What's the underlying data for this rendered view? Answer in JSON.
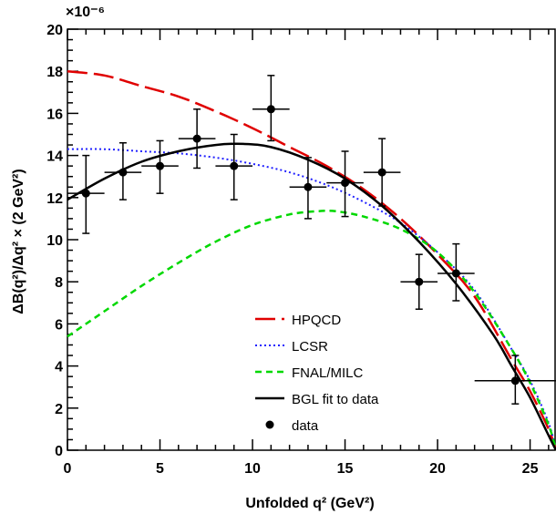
{
  "chart_data": {
    "type": "scatter",
    "title": "",
    "xlabel": "Unfolded q² (GeV²)",
    "ylabel": "ΔB(q²)/Δq² × (2 GeV²)",
    "y_exponent_label": "×10⁻⁶",
    "xlim": [
      0,
      26.4
    ],
    "ylim": [
      0,
      20
    ],
    "x_ticks": [
      "0",
      "5",
      "10",
      "15",
      "20",
      "25"
    ],
    "y_ticks": [
      "0",
      "2",
      "4",
      "6",
      "8",
      "10",
      "12",
      "14",
      "16",
      "18",
      "20"
    ],
    "grid": false,
    "legend_position": "bottom-center",
    "data_series": {
      "name": "data",
      "color": "#000000",
      "points": [
        {
          "x": 1,
          "y": 12.2,
          "xerr_lo": 1,
          "xerr_hi": 1,
          "yerr_lo": 1.9,
          "yerr_hi": 1.8
        },
        {
          "x": 3,
          "y": 13.2,
          "xerr_lo": 1,
          "xerr_hi": 1,
          "yerr_lo": 1.3,
          "yerr_hi": 1.4
        },
        {
          "x": 5,
          "y": 13.5,
          "xerr_lo": 1,
          "xerr_hi": 1,
          "yerr_lo": 1.3,
          "yerr_hi": 1.2
        },
        {
          "x": 7,
          "y": 14.8,
          "xerr_lo": 1,
          "xerr_hi": 1,
          "yerr_lo": 1.4,
          "yerr_hi": 1.4
        },
        {
          "x": 9,
          "y": 13.5,
          "xerr_lo": 1,
          "xerr_hi": 1,
          "yerr_lo": 1.6,
          "yerr_hi": 1.5
        },
        {
          "x": 11,
          "y": 16.2,
          "xerr_lo": 1,
          "xerr_hi": 1,
          "yerr_lo": 1.5,
          "yerr_hi": 1.6
        },
        {
          "x": 13,
          "y": 12.5,
          "xerr_lo": 1,
          "xerr_hi": 1,
          "yerr_lo": 1.5,
          "yerr_hi": 1.4
        },
        {
          "x": 15,
          "y": 12.7,
          "xerr_lo": 1,
          "xerr_hi": 1,
          "yerr_lo": 1.6,
          "yerr_hi": 1.5
        },
        {
          "x": 17,
          "y": 13.2,
          "xerr_lo": 1,
          "xerr_hi": 1,
          "yerr_lo": 1.6,
          "yerr_hi": 1.6
        },
        {
          "x": 19,
          "y": 8.0,
          "xerr_lo": 1,
          "xerr_hi": 1,
          "yerr_lo": 1.3,
          "yerr_hi": 1.3
        },
        {
          "x": 21,
          "y": 8.4,
          "xerr_lo": 1,
          "xerr_hi": 1,
          "yerr_lo": 1.3,
          "yerr_hi": 1.4
        },
        {
          "x": 24.2,
          "y": 3.3,
          "xerr_lo": 2.2,
          "xerr_hi": 2.2,
          "yerr_lo": 1.1,
          "yerr_hi": 1.2
        }
      ]
    },
    "curves": [
      {
        "name": "HPQCD",
        "color": "#e00000",
        "dash": "22 7",
        "width": 2.5,
        "x": [
          0,
          2,
          4,
          6,
          8,
          10,
          12,
          14,
          16,
          18,
          20,
          22,
          24,
          25,
          26,
          26.4
        ],
        "y": [
          18.0,
          17.8,
          17.3,
          16.8,
          16.1,
          15.3,
          14.4,
          13.5,
          12.4,
          11.0,
          9.3,
          7.3,
          4.3,
          2.8,
          1.0,
          0.0
        ]
      },
      {
        "name": "LCSR",
        "color": "#2020ff",
        "dash": "2 3",
        "width": 2,
        "x": [
          0,
          2,
          4,
          6,
          8,
          10,
          12,
          14,
          16,
          18,
          20,
          22,
          24,
          25,
          26,
          26.4
        ],
        "y": [
          14.3,
          14.3,
          14.2,
          14.1,
          13.9,
          13.6,
          13.2,
          12.6,
          11.8,
          10.8,
          9.4,
          7.6,
          4.8,
          3.3,
          1.3,
          0.0
        ]
      },
      {
        "name": "FNAL/MILC",
        "color": "#00d800",
        "dash": "7 5",
        "width": 2.5,
        "x": [
          0,
          2,
          4,
          6,
          8,
          10,
          12,
          13.5,
          14.5,
          16,
          18,
          20,
          22,
          24,
          25,
          26,
          26.4
        ],
        "y": [
          5.4,
          6.6,
          7.8,
          8.9,
          9.9,
          10.7,
          11.2,
          11.35,
          11.35,
          11.1,
          10.5,
          9.4,
          7.5,
          4.8,
          3.2,
          1.2,
          0.0
        ]
      },
      {
        "name": "BGL fit to data",
        "color": "#000000",
        "dash": "",
        "width": 2.5,
        "x": [
          0,
          2,
          4,
          6,
          8,
          9.5,
          11,
          13,
          15,
          17,
          19,
          21,
          23,
          24,
          25,
          26,
          26.4
        ],
        "y": [
          11.9,
          12.9,
          13.7,
          14.2,
          14.5,
          14.55,
          14.4,
          13.8,
          12.9,
          11.6,
          9.9,
          7.9,
          5.5,
          4.0,
          2.5,
          0.7,
          0.0
        ]
      }
    ],
    "legend": [
      {
        "label": "HPQCD",
        "kind": "line",
        "series": 0
      },
      {
        "label": "LCSR",
        "kind": "line",
        "series": 1
      },
      {
        "label": "FNAL/MILC",
        "kind": "line",
        "series": 2
      },
      {
        "label": "BGL fit to data",
        "kind": "line",
        "series": 3
      },
      {
        "label": "data",
        "kind": "marker"
      }
    ]
  }
}
